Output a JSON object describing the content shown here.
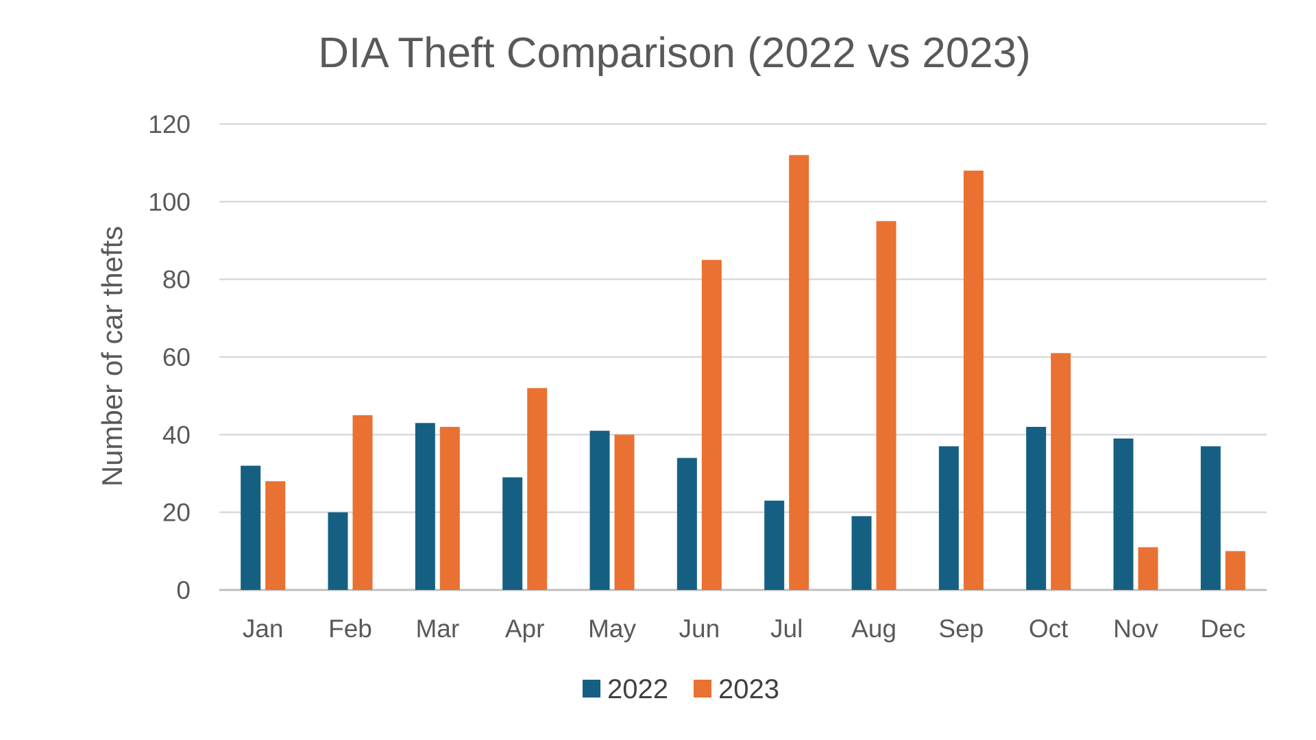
{
  "chart_data": {
    "type": "bar",
    "title": "DIA Theft Comparison (2022 vs 2023)",
    "xlabel": "",
    "ylabel": "Number of car thefts",
    "ylim": [
      0,
      120
    ],
    "yticks": [
      0,
      20,
      40,
      60,
      80,
      100,
      120
    ],
    "grid": true,
    "legend_position": "bottom",
    "categories": [
      "Jan",
      "Feb",
      "Mar",
      "Apr",
      "May",
      "Jun",
      "Jul",
      "Aug",
      "Sep",
      "Oct",
      "Nov",
      "Dec"
    ],
    "series": [
      {
        "name": "2022",
        "color": "#156082",
        "values": [
          32,
          20,
          43,
          29,
          41,
          34,
          23,
          19,
          37,
          42,
          39,
          37
        ]
      },
      {
        "name": "2023",
        "color": "#E97132",
        "values": [
          28,
          45,
          42,
          52,
          40,
          85,
          112,
          95,
          108,
          61,
          11,
          10
        ]
      }
    ],
    "gridline_color": "#D9D9D9",
    "baseline_color": "#BFBFBF"
  }
}
